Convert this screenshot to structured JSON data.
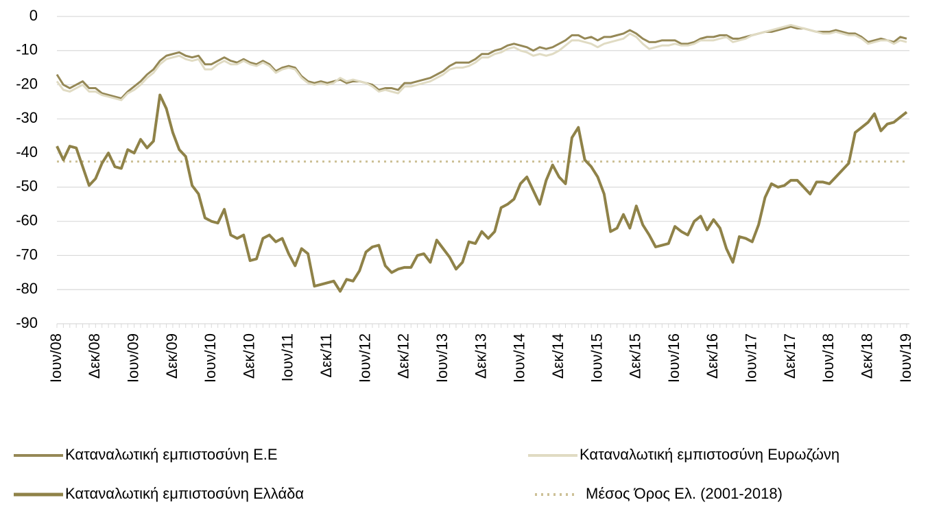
{
  "chart_data": {
    "type": "line",
    "categories": [
      "Ιουν/08",
      null,
      null,
      null,
      null,
      null,
      "Δεκ/08",
      null,
      null,
      null,
      null,
      null,
      "Ιουν/09",
      null,
      null,
      null,
      null,
      null,
      "Δεκ/09",
      null,
      null,
      null,
      null,
      null,
      "Ιουν/10",
      null,
      null,
      null,
      null,
      null,
      "Δεκ/10",
      null,
      null,
      null,
      null,
      null,
      "Ιουν/11",
      null,
      null,
      null,
      null,
      null,
      "Δεκ/11",
      null,
      null,
      null,
      null,
      null,
      "Ιουν/12",
      null,
      null,
      null,
      null,
      null,
      "Δεκ/12",
      null,
      null,
      null,
      null,
      null,
      "Ιουν/13",
      null,
      null,
      null,
      null,
      null,
      "Δεκ/13",
      null,
      null,
      null,
      null,
      null,
      "Ιουν/14",
      null,
      null,
      null,
      null,
      null,
      "Δεκ/14",
      null,
      null,
      null,
      null,
      null,
      "Ιουν/15",
      null,
      null,
      null,
      null,
      null,
      "Δεκ/15",
      null,
      null,
      null,
      null,
      null,
      "Ιουν/16",
      null,
      null,
      null,
      null,
      null,
      "Δεκ/16",
      null,
      null,
      null,
      null,
      null,
      "Ιουν/17",
      null,
      null,
      null,
      null,
      null,
      "Δεκ/17",
      null,
      null,
      null,
      null,
      null,
      "Ιουν/18",
      null,
      null,
      null,
      null,
      null,
      "Δεκ/18",
      null,
      null,
      null,
      null,
      null,
      "Ιουν/19"
    ],
    "series": [
      {
        "name": "Καταναλωτική εμπιστοσύνη Ε.Ε",
        "color": "#958856",
        "width": 3,
        "values": [
          -17,
          -20,
          -21,
          -20,
          -19,
          -21,
          -21,
          -22.5,
          -23,
          -23.5,
          -24,
          -22,
          -20.5,
          -19,
          -17,
          -15.5,
          -13,
          -11.5,
          -11,
          -10.5,
          -11.5,
          -12,
          -11.5,
          -14,
          -14,
          -13,
          -12,
          -13,
          -13.5,
          -12.5,
          -13.5,
          -14,
          -13,
          -14,
          -16,
          -15,
          -14.5,
          -15,
          -17.5,
          -19,
          -19.5,
          -19,
          -19.5,
          -19,
          -18.5,
          -19.5,
          -19,
          -19,
          -19.5,
          -20,
          -21.5,
          -21,
          -21,
          -21.5,
          -19.5,
          -19.5,
          -19,
          -18.5,
          -18,
          -17,
          -16,
          -14.5,
          -13.5,
          -13.5,
          -13.5,
          -12.5,
          -11,
          -11,
          -10,
          -9.5,
          -8.5,
          -8,
          -8.5,
          -9,
          -10,
          -9,
          -9.5,
          -9,
          -8,
          -7,
          -5.5,
          -5.5,
          -6.5,
          -6,
          -7,
          -6,
          -6,
          -5.5,
          -5,
          -4,
          -5,
          -6.5,
          -7.5,
          -7.5,
          -7,
          -7,
          -7,
          -8,
          -8,
          -7.5,
          -6.5,
          -6,
          -6,
          -5.5,
          -5.5,
          -6.5,
          -6.5,
          -6,
          -5.5,
          -5,
          -4.5,
          -4.5,
          -4,
          -3.5,
          -3,
          -3.5,
          -3.5,
          -4,
          -4.5,
          -4.5,
          -4.5,
          -4,
          -4.5,
          -5,
          -5,
          -6,
          -7.5,
          -7,
          -6.5,
          -7,
          -7.5,
          -6,
          -6.5
        ]
      },
      {
        "name": "Καταναλωτική εμπιστοσύνη Ευρωζώνη",
        "color": "#e0dbc3",
        "width": 3,
        "values": [
          -19,
          -21.5,
          -22,
          -21,
          -20,
          -22,
          -22,
          -23,
          -23.5,
          -24,
          -24.5,
          -22.5,
          -21.5,
          -20,
          -18,
          -16.5,
          -14,
          -12.5,
          -12,
          -11.5,
          -12.5,
          -13,
          -12.5,
          -15.5,
          -15.5,
          -14,
          -13,
          -14,
          -14,
          -13,
          -14,
          -14.5,
          -13.5,
          -14.5,
          -16.5,
          -15.5,
          -15,
          -15.5,
          -18,
          -19.5,
          -20,
          -19.5,
          -20,
          -19.5,
          -18,
          -19,
          -18.5,
          -19,
          -19.5,
          -20.5,
          -22,
          -21.5,
          -22,
          -22.5,
          -20.5,
          -20.5,
          -20,
          -19.5,
          -19,
          -18,
          -17,
          -15.5,
          -15,
          -15,
          -14.5,
          -13.5,
          -12,
          -12,
          -11,
          -10.5,
          -9.5,
          -9,
          -10,
          -10.5,
          -11.5,
          -11,
          -11.5,
          -11,
          -10,
          -8.5,
          -7,
          -7,
          -7.5,
          -8,
          -9,
          -8,
          -7.5,
          -7,
          -6.5,
          -5,
          -6,
          -8,
          -9.5,
          -9,
          -8.5,
          -8.5,
          -8,
          -8.5,
          -8.5,
          -8,
          -7,
          -7,
          -7,
          -6.5,
          -6,
          -7.5,
          -7,
          -6.5,
          -5.5,
          -5,
          -4.5,
          -4,
          -3.5,
          -3,
          -2.5,
          -3,
          -3.5,
          -4,
          -4.5,
          -5,
          -5,
          -4.5,
          -5,
          -5.5,
          -5.5,
          -6.5,
          -8,
          -7.5,
          -7,
          -7,
          -8,
          -7,
          -7.5
        ]
      },
      {
        "name": "Καταναλωτική εμπιστοσύνη Ελλάδα",
        "color": "#8f8248",
        "width": 4,
        "values": [
          -38,
          -42,
          -38,
          -38.5,
          -44,
          -49.5,
          -47.5,
          -43,
          -40,
          -44,
          -44.5,
          -39,
          -40,
          -36,
          -38.5,
          -36.5,
          -23,
          -27,
          -34,
          -39,
          -41,
          -49.5,
          -52,
          -59,
          -60,
          -60.5,
          -56.5,
          -64,
          -65,
          -64,
          -71.5,
          -71,
          -65,
          -64,
          -66,
          -65,
          -69.5,
          -73,
          -68,
          -69.5,
          -79,
          -78.5,
          -78,
          -77.5,
          -80.5,
          -77,
          -77.5,
          -74.5,
          -69,
          -67.5,
          -67,
          -73,
          -75,
          -74,
          -73.5,
          -73.5,
          -70,
          -69.5,
          -72,
          -65.5,
          -68,
          -70.5,
          -74,
          -72,
          -66,
          -66.5,
          -63,
          -65,
          -63,
          -56,
          -55,
          -53.5,
          -49,
          -47,
          -51,
          -55,
          -48,
          -43.5,
          -47,
          -49,
          -35.5,
          -32.5,
          -42,
          -44,
          -47,
          -52,
          -63,
          -62,
          -58,
          -62,
          -55.5,
          -61,
          -64,
          -67.5,
          -67,
          -66.5,
          -61.5,
          -63,
          -64,
          -60,
          -58.5,
          -62.5,
          -59.5,
          -62,
          -68,
          -72,
          -64.5,
          -65,
          -66,
          -61,
          -53,
          -49,
          -50,
          -49.5,
          -48,
          -48,
          -50,
          -52,
          -48.5,
          -48.5,
          -49,
          -47,
          -45,
          -43,
          -34,
          -32.5,
          -31,
          -28.5,
          -33.5,
          -31.5,
          -31,
          -29.5,
          -28
        ]
      },
      {
        "name": "Μέσος Όρος Ελ. (2001-2018)",
        "color": "#cdc197",
        "width": 3,
        "dashed": true,
        "values": [
          -42.5,
          -42.5,
          -42.5,
          -42.5,
          -42.5,
          -42.5,
          -42.5,
          -42.5,
          -42.5,
          -42.5,
          -42.5,
          -42.5,
          -42.5,
          -42.5,
          -42.5,
          -42.5,
          -42.5,
          -42.5,
          -42.5,
          -42.5,
          -42.5,
          -42.5,
          -42.5,
          -42.5,
          -42.5,
          -42.5,
          -42.5,
          -42.5,
          -42.5,
          -42.5,
          -42.5,
          -42.5,
          -42.5,
          -42.5,
          -42.5,
          -42.5,
          -42.5,
          -42.5,
          -42.5,
          -42.5,
          -42.5,
          -42.5,
          -42.5,
          -42.5,
          -42.5,
          -42.5,
          -42.5,
          -42.5,
          -42.5,
          -42.5,
          -42.5,
          -42.5,
          -42.5,
          -42.5,
          -42.5,
          -42.5,
          -42.5,
          -42.5,
          -42.5,
          -42.5,
          -42.5,
          -42.5,
          -42.5,
          -42.5,
          -42.5,
          -42.5,
          -42.5,
          -42.5,
          -42.5,
          -42.5,
          -42.5,
          -42.5,
          -42.5,
          -42.5,
          -42.5,
          -42.5,
          -42.5,
          -42.5,
          -42.5,
          -42.5,
          -42.5,
          -42.5,
          -42.5,
          -42.5,
          -42.5,
          -42.5,
          -42.5,
          -42.5,
          -42.5,
          -42.5,
          -42.5,
          -42.5,
          -42.5,
          -42.5,
          -42.5,
          -42.5,
          -42.5,
          -42.5,
          -42.5,
          -42.5,
          -42.5,
          -42.5,
          -42.5,
          -42.5,
          -42.5,
          -42.5,
          -42.5,
          -42.5,
          -42.5,
          -42.5,
          -42.5,
          -42.5,
          -42.5,
          -42.5,
          -42.5,
          -42.5,
          -42.5,
          -42.5,
          -42.5,
          -42.5,
          -42.5,
          -42.5,
          -42.5,
          -42.5,
          -42.5,
          -42.5,
          -42.5,
          -42.5,
          -42.5,
          -42.5,
          -42.5,
          -42.5,
          -42.5
        ]
      }
    ],
    "ylim": [
      -90,
      0
    ],
    "yticks": [
      0,
      -10,
      -20,
      -30,
      -40,
      -50,
      -60,
      -70,
      -80,
      -90
    ],
    "grid": true,
    "legend": "bottom"
  }
}
